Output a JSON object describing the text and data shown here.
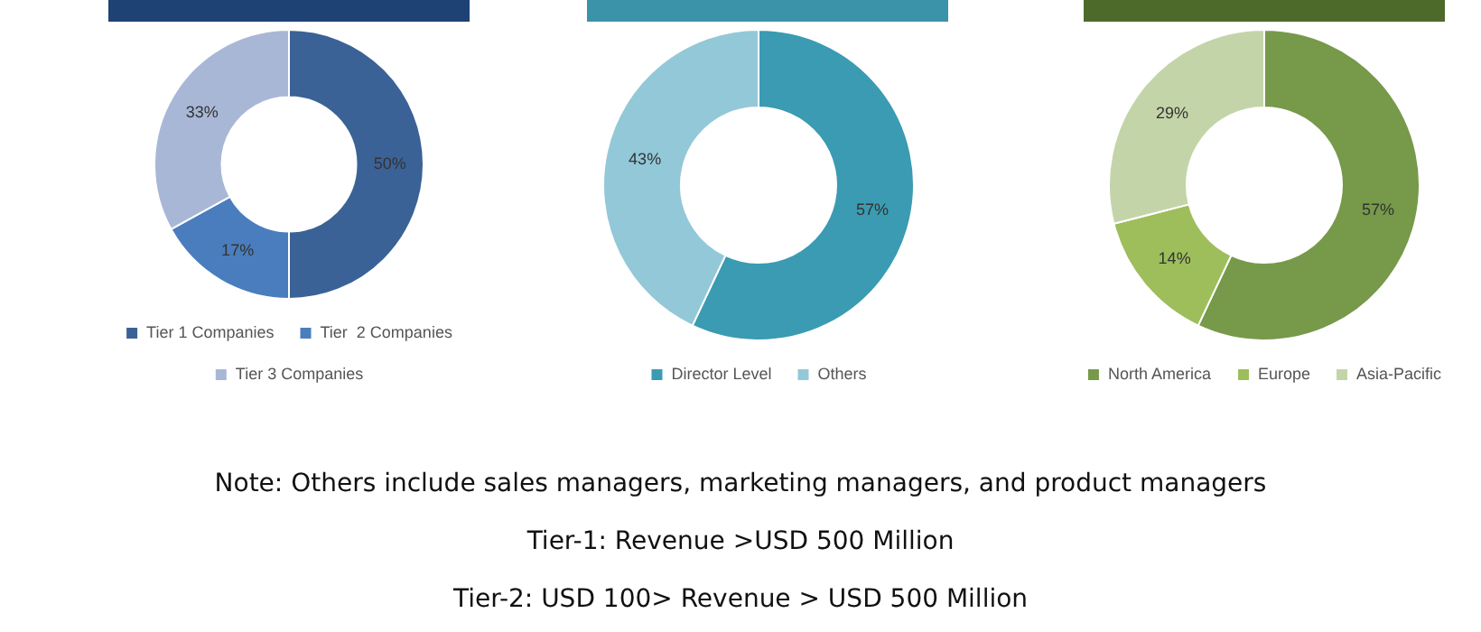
{
  "chart_data": [
    {
      "type": "donut",
      "categories": [
        "Tier 1 Companies",
        "Tier  2 Companies",
        "Tier 3 Companies"
      ],
      "values": [
        50,
        17,
        33
      ],
      "colors": [
        "#3a6296",
        "#4a7dbd",
        "#a9b7d7"
      ],
      "value_labels": [
        "50%",
        "17%",
        "33%"
      ],
      "legend": "bottom"
    },
    {
      "type": "donut",
      "categories": [
        "Director Level",
        "Others"
      ],
      "values": [
        57,
        43
      ],
      "colors": [
        "#3a9bb2",
        "#93c8d8"
      ],
      "value_labels": [
        "57%",
        "43%"
      ],
      "legend": "bottom"
    },
    {
      "type": "donut",
      "categories": [
        "North America",
        "Europe",
        "Asia-Pacific"
      ],
      "values": [
        57,
        14,
        29
      ],
      "colors": [
        "#77994a",
        "#9dbe5b",
        "#c4d4a9"
      ],
      "value_labels": [
        "57%",
        "14%",
        "29%"
      ],
      "legend": "bottom"
    },
    {
      "type": "other",
      "annotations": [
        "Note: Others include sales managers, marketing managers, and product managers",
        "Tier-1: Revenue >USD 500 Million",
        "Tier-2: USD 100> Revenue > USD 500 Million"
      ]
    }
  ]
}
